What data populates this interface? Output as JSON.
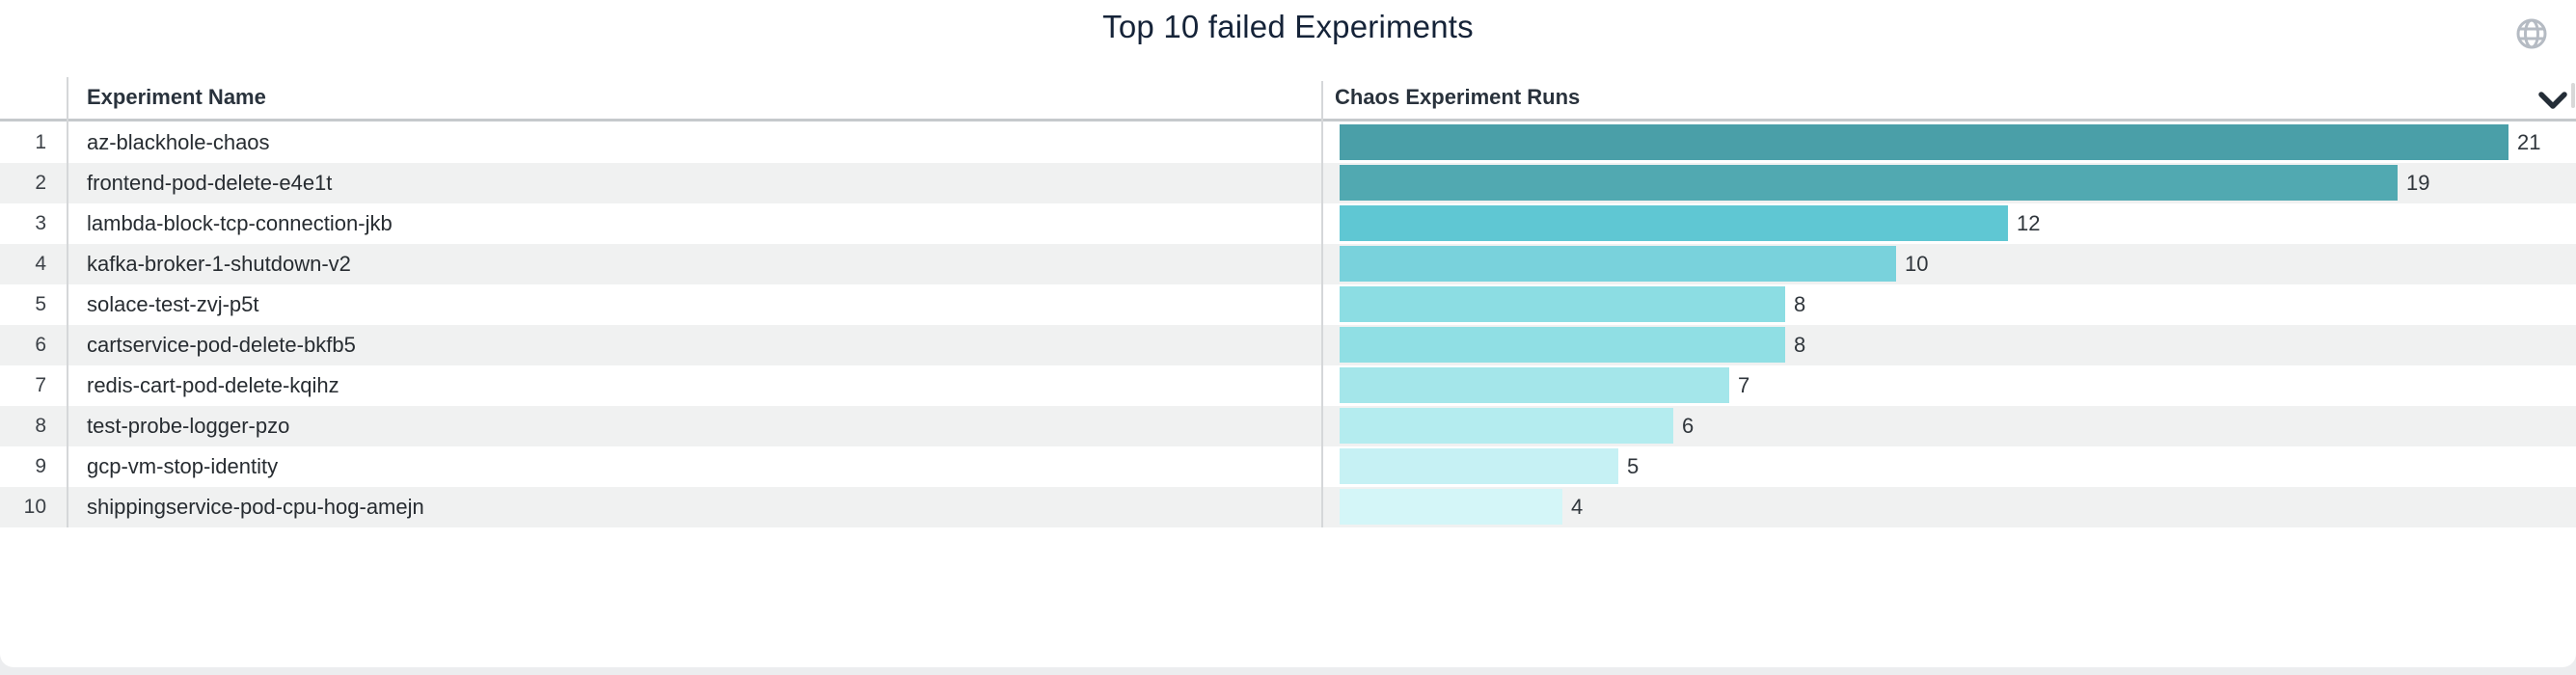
{
  "title": "Top 10 failed Experiments",
  "header": {
    "col1": "Experiment Name",
    "col2": "Chaos Experiment Runs"
  },
  "icons": {
    "globe": "globe-icon",
    "chevron": "chevron-down-icon"
  },
  "colors": {
    "title_text": "#152338",
    "header_text": "#29323c",
    "row_alt_bg": "#f0f1f1",
    "separator": "#d5d7d9",
    "bar_palette": [
      "#4a9fa8",
      "#51a9b1",
      "#5fc7d3",
      "#79d2dc",
      "#8cdde3",
      "#90dfe4",
      "#a4e6ea",
      "#b4ecef",
      "#c6f1f4",
      "#d4f6f8"
    ]
  },
  "chart_data": {
    "type": "bar",
    "orientation": "horizontal",
    "title": "Top 10 failed Experiments",
    "columns": [
      "Experiment Name",
      "Chaos Experiment Runs"
    ],
    "ranks": [
      1,
      2,
      3,
      4,
      5,
      6,
      7,
      8,
      9,
      10
    ],
    "categories": [
      "az-blackhole-chaos",
      "frontend-pod-delete-e4e1t",
      "lambda-block-tcp-connection-jkb",
      "kafka-broker-1-shutdown-v2",
      "solace-test-zvj-p5t",
      "cartservice-pod-delete-bkfb5",
      "redis-cart-pod-delete-kqihz",
      "test-probe-logger-pzo",
      "gcp-vm-stop-identity",
      "shippingservice-pod-cpu-hog-amejn"
    ],
    "values": [
      21,
      19,
      12,
      10,
      8,
      8,
      7,
      6,
      5,
      4
    ],
    "xlim": [
      0,
      21.5
    ],
    "grid": false,
    "legend": "none",
    "data_labels": "end-of-bar"
  }
}
